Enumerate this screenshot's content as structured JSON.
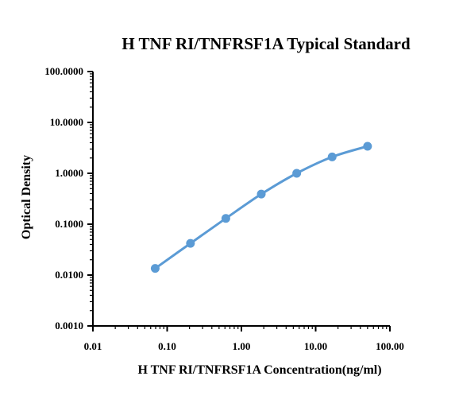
{
  "chart_data": {
    "type": "scatter",
    "title": "H TNF RI/TNFRSF1A Typical Standard",
    "xlabel": "H TNF RI/TNFRSF1A Concentration(ng/ml)",
    "ylabel": "Optical Density",
    "x_scale": "log",
    "y_scale": "log",
    "xlim": [
      0.01,
      100
    ],
    "ylim": [
      0.001,
      100
    ],
    "x_ticks": [
      "0.01",
      "0.10",
      "1.00",
      "10.00",
      "100.00"
    ],
    "y_ticks": [
      "0.0010",
      "0.0100",
      "0.1000",
      "1.0000",
      "10.0000",
      "100.0000"
    ],
    "grid": false,
    "legend": "none",
    "fit_curve": true,
    "color": "#5b9bd5",
    "series": [
      {
        "x": [
          0.069,
          0.206,
          0.617,
          1.852,
          5.556,
          16.667,
          50
        ],
        "y": [
          0.0135,
          0.042,
          0.13,
          0.39,
          1.0,
          2.1,
          3.4
        ]
      }
    ]
  }
}
